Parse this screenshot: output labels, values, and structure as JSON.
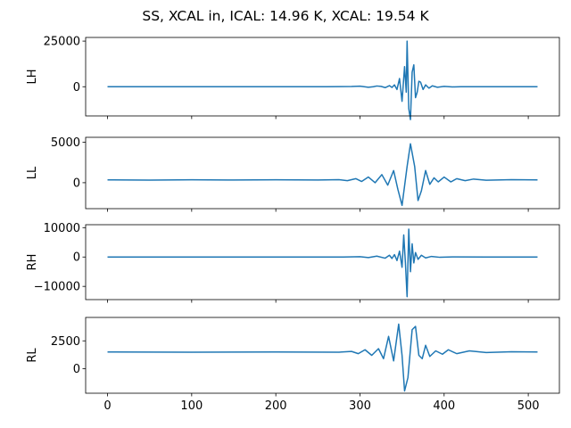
{
  "chart_data": {
    "type": "line",
    "title": "SS, XCAL in, ICAL: 14.96 K, XCAL: 19.54 K",
    "sharex": true,
    "xlim": [
      -26,
      537
    ],
    "xticks": [
      0,
      100,
      200,
      300,
      400,
      500
    ],
    "xtick_labels": [
      "0",
      "100",
      "200",
      "300",
      "400",
      "500"
    ],
    "grid": false,
    "panels": [
      {
        "ylabel": "LH",
        "ylim": [
          -16000,
          27000
        ],
        "yticks": [
          0,
          25000
        ],
        "ytick_labels": [
          "0",
          "25000"
        ],
        "baseline": 0,
        "series_color": "#1f77b4",
        "series_points": [
          [
            0,
            0
          ],
          [
            100,
            0
          ],
          [
            200,
            0
          ],
          [
            260,
            0
          ],
          [
            290,
            100
          ],
          [
            300,
            300
          ],
          [
            305,
            0
          ],
          [
            310,
            -300
          ],
          [
            316,
            0
          ],
          [
            320,
            400
          ],
          [
            325,
            200
          ],
          [
            330,
            -500
          ],
          [
            335,
            600
          ],
          [
            338,
            -400
          ],
          [
            341,
            1000
          ],
          [
            344,
            -1500
          ],
          [
            347,
            4500
          ],
          [
            350,
            -8000
          ],
          [
            353,
            11000
          ],
          [
            355,
            -3000
          ],
          [
            356,
            25000
          ],
          [
            358,
            -12000
          ],
          [
            360,
            -18000
          ],
          [
            362,
            8000
          ],
          [
            364,
            12000
          ],
          [
            366,
            -6000
          ],
          [
            368,
            -3000
          ],
          [
            370,
            3000
          ],
          [
            372,
            2500
          ],
          [
            375,
            -1500
          ],
          [
            378,
            1000
          ],
          [
            382,
            -800
          ],
          [
            386,
            500
          ],
          [
            392,
            -300
          ],
          [
            400,
            200
          ],
          [
            410,
            -100
          ],
          [
            420,
            0
          ],
          [
            450,
            0
          ],
          [
            511,
            0
          ]
        ]
      },
      {
        "ylabel": "LL",
        "ylim": [
          -3200,
          5600
        ],
        "yticks": [
          0,
          5000
        ],
        "ytick_labels": [
          "0",
          "5000"
        ],
        "baseline": 350,
        "series_color": "#1f77b4",
        "series_points": [
          [
            0,
            350
          ],
          [
            50,
            320
          ],
          [
            100,
            360
          ],
          [
            150,
            330
          ],
          [
            200,
            360
          ],
          [
            250,
            330
          ],
          [
            275,
            380
          ],
          [
            285,
            250
          ],
          [
            295,
            500
          ],
          [
            302,
            150
          ],
          [
            310,
            700
          ],
          [
            318,
            0
          ],
          [
            326,
            1000
          ],
          [
            333,
            -300
          ],
          [
            340,
            1500
          ],
          [
            345,
            -800
          ],
          [
            350,
            -2800
          ],
          [
            356,
            2000
          ],
          [
            360,
            4800
          ],
          [
            365,
            2000
          ],
          [
            369,
            -2200
          ],
          [
            373,
            -1000
          ],
          [
            378,
            1500
          ],
          [
            383,
            -200
          ],
          [
            388,
            600
          ],
          [
            393,
            100
          ],
          [
            400,
            700
          ],
          [
            408,
            100
          ],
          [
            415,
            500
          ],
          [
            425,
            250
          ],
          [
            435,
            450
          ],
          [
            450,
            300
          ],
          [
            480,
            380
          ],
          [
            511,
            350
          ]
        ]
      },
      {
        "ylabel": "RH",
        "ylim": [
          -14500,
          11000
        ],
        "yticks": [
          -10000,
          0,
          10000
        ],
        "ytick_labels": [
          "−10000",
          "0",
          "10000"
        ],
        "baseline": 0,
        "series_color": "#1f77b4",
        "series_points": [
          [
            0,
            0
          ],
          [
            100,
            0
          ],
          [
            200,
            0
          ],
          [
            280,
            0
          ],
          [
            300,
            100
          ],
          [
            310,
            -200
          ],
          [
            320,
            300
          ],
          [
            330,
            -400
          ],
          [
            335,
            600
          ],
          [
            338,
            -500
          ],
          [
            341,
            800
          ],
          [
            344,
            -1200
          ],
          [
            347,
            2000
          ],
          [
            350,
            -3500
          ],
          [
            352,
            7500
          ],
          [
            354,
            -2000
          ],
          [
            356,
            -13500
          ],
          [
            358,
            9500
          ],
          [
            360,
            -5000
          ],
          [
            362,
            4500
          ],
          [
            364,
            -2000
          ],
          [
            366,
            1500
          ],
          [
            369,
            -800
          ],
          [
            373,
            600
          ],
          [
            378,
            -300
          ],
          [
            385,
            200
          ],
          [
            395,
            -100
          ],
          [
            410,
            50
          ],
          [
            450,
            0
          ],
          [
            511,
            0
          ]
        ]
      },
      {
        "ylabel": "RL",
        "ylim": [
          -2200,
          4600
        ],
        "yticks": [
          0,
          2500
        ],
        "ytick_labels": [
          "0",
          "2500"
        ],
        "baseline": 1500,
        "series_color": "#1f77b4",
        "series_points": [
          [
            0,
            1500
          ],
          [
            100,
            1480
          ],
          [
            200,
            1500
          ],
          [
            275,
            1480
          ],
          [
            290,
            1550
          ],
          [
            298,
            1350
          ],
          [
            306,
            1700
          ],
          [
            314,
            1200
          ],
          [
            322,
            1800
          ],
          [
            328,
            900
          ],
          [
            334,
            2900
          ],
          [
            340,
            700
          ],
          [
            346,
            4000
          ],
          [
            350,
            1200
          ],
          [
            353,
            -2000
          ],
          [
            357,
            -800
          ],
          [
            362,
            3500
          ],
          [
            366,
            3800
          ],
          [
            370,
            1200
          ],
          [
            374,
            900
          ],
          [
            378,
            2100
          ],
          [
            383,
            1100
          ],
          [
            390,
            1600
          ],
          [
            398,
            1300
          ],
          [
            405,
            1700
          ],
          [
            415,
            1350
          ],
          [
            430,
            1600
          ],
          [
            450,
            1450
          ],
          [
            480,
            1520
          ],
          [
            511,
            1500
          ]
        ]
      }
    ]
  }
}
